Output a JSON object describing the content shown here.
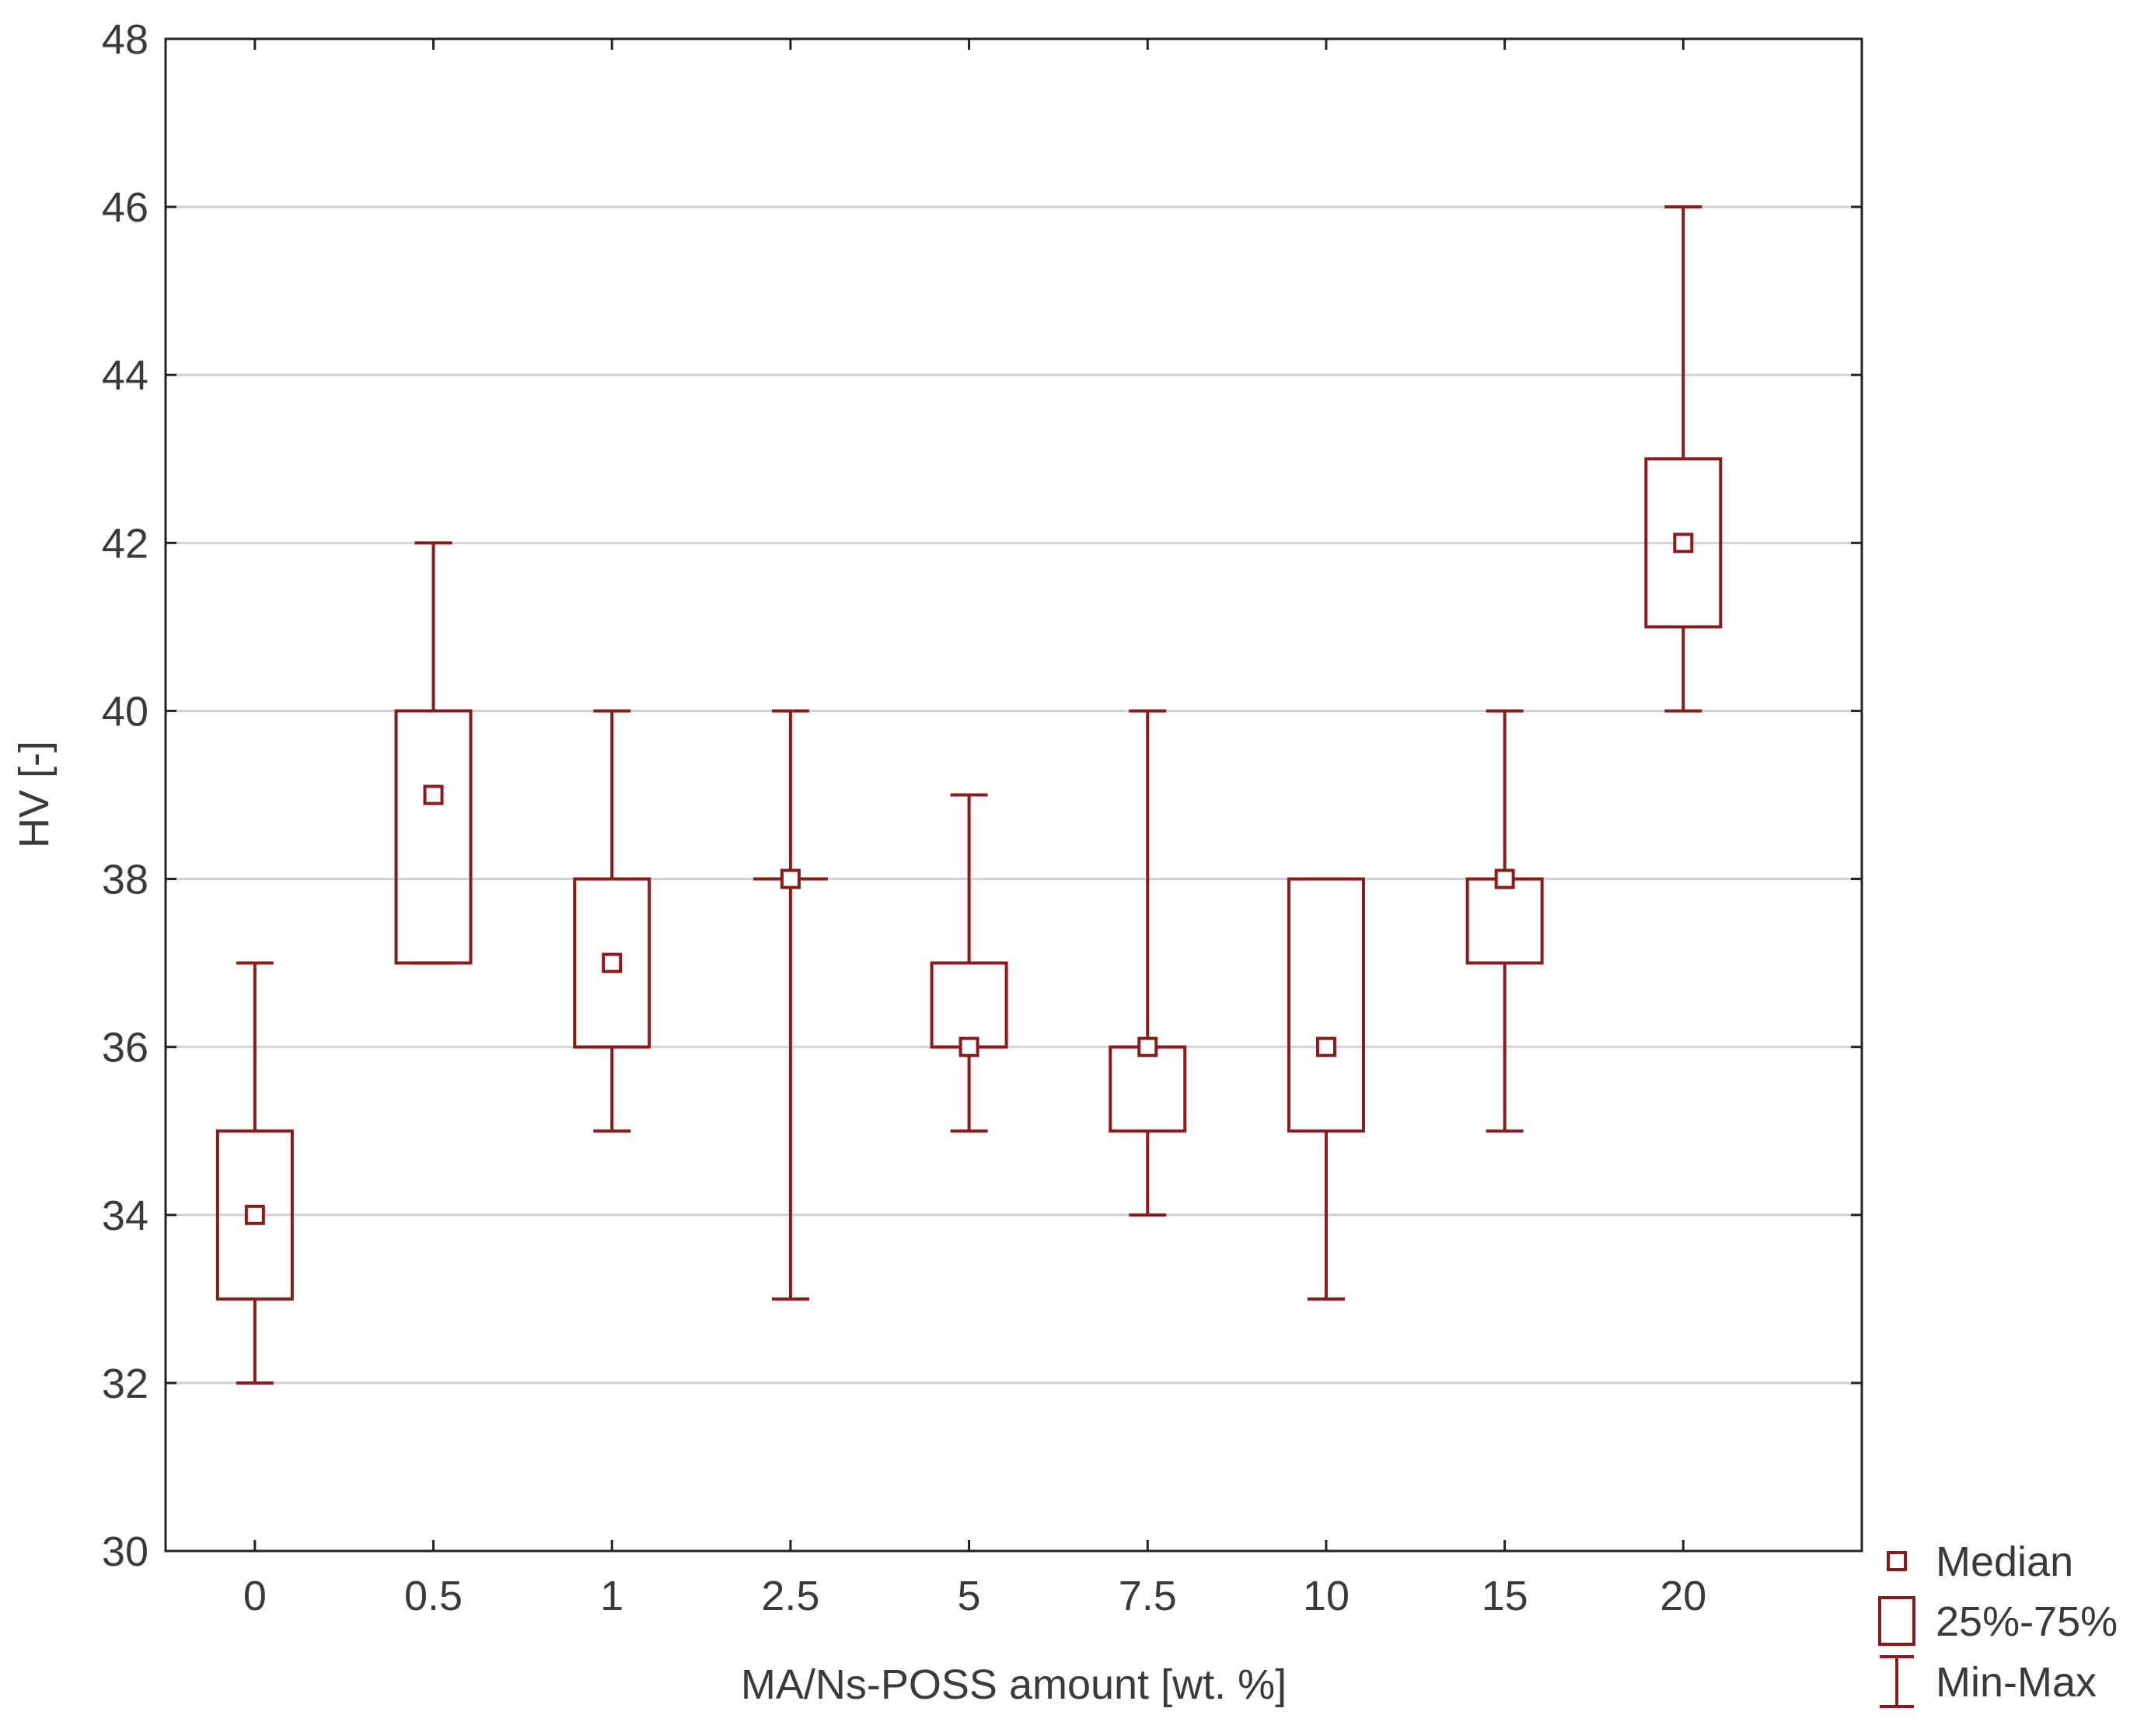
{
  "chart_data": {
    "type": "boxplot",
    "xlabel": "MA/Ns-POSS amount [wt. %]",
    "ylabel": "HV [-]",
    "ylim": [
      30,
      48
    ],
    "yticks": [
      30,
      32,
      34,
      36,
      38,
      40,
      42,
      44,
      46,
      48
    ],
    "grid": true,
    "legend_position": "bottom-right, outside plot",
    "categories": [
      "0",
      "0.5",
      "1",
      "2.5",
      "5",
      "7.5",
      "10",
      "15",
      "20"
    ],
    "series": [
      {
        "category": "0",
        "min": 32,
        "q1": 33,
        "median": 34,
        "q3": 35,
        "max": 37
      },
      {
        "category": "0.5",
        "min": 37,
        "q1": 37,
        "median": 39,
        "q3": 40,
        "max": 42
      },
      {
        "category": "1",
        "min": 35,
        "q1": 36,
        "median": 37,
        "q3": 38,
        "max": 40
      },
      {
        "category": "2.5",
        "min": 33,
        "q1": 38,
        "median": 38,
        "q3": 38,
        "max": 40
      },
      {
        "category": "5",
        "min": 35,
        "q1": 36,
        "median": 36,
        "q3": 37,
        "max": 39
      },
      {
        "category": "7.5",
        "min": 34,
        "q1": 35,
        "median": 36,
        "q3": 36,
        "max": 40
      },
      {
        "category": "10",
        "min": 33,
        "q1": 35,
        "median": 36,
        "q3": 38,
        "max": 38
      },
      {
        "category": "15",
        "min": 35,
        "q1": 37,
        "median": 38,
        "q3": 38,
        "max": 40
      },
      {
        "category": "20",
        "min": 40,
        "q1": 41,
        "median": 42,
        "q3": 43,
        "max": 46
      }
    ],
    "legend": [
      {
        "symbol": "median",
        "label": "Median"
      },
      {
        "symbol": "box",
        "label": "25%-75%"
      },
      {
        "symbol": "whisker",
        "label": "Min-Max"
      }
    ],
    "colors": {
      "series": "#8b1a1a",
      "grid": "#d2d2d2",
      "axis": "#222222",
      "text": "#3a3a3a"
    }
  }
}
